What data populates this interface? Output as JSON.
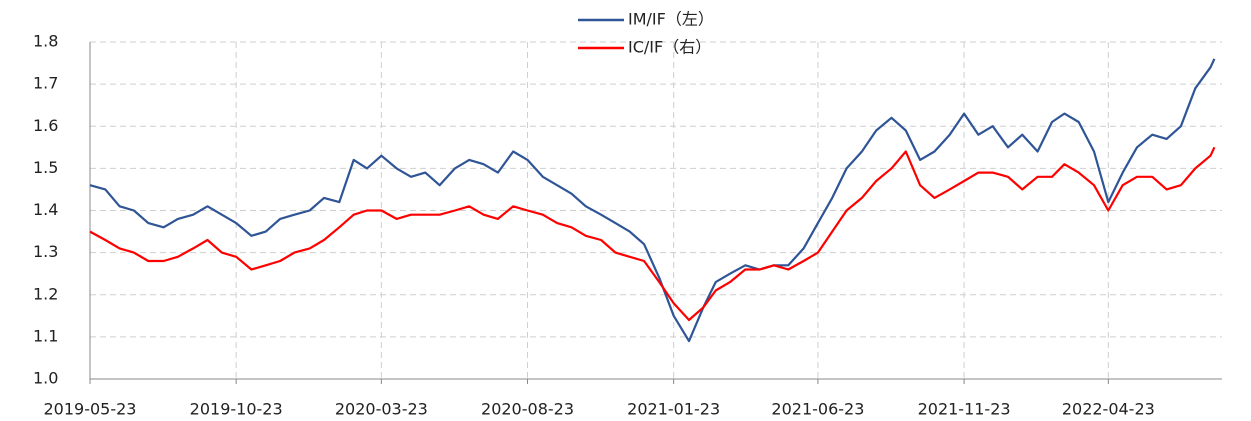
{
  "chart_data": {
    "type": "line",
    "x": [
      "2019-05-23",
      "2019-06-08",
      "2019-06-23",
      "2019-07-08",
      "2019-07-23",
      "2019-08-08",
      "2019-08-23",
      "2019-09-08",
      "2019-09-23",
      "2019-10-08",
      "2019-10-23",
      "2019-11-08",
      "2019-11-23",
      "2019-12-08",
      "2019-12-23",
      "2020-01-08",
      "2020-01-23",
      "2020-02-08",
      "2020-02-23",
      "2020-03-08",
      "2020-03-23",
      "2020-04-08",
      "2020-04-23",
      "2020-05-08",
      "2020-05-23",
      "2020-06-08",
      "2020-06-23",
      "2020-07-08",
      "2020-07-23",
      "2020-08-08",
      "2020-08-23",
      "2020-09-08",
      "2020-09-23",
      "2020-10-08",
      "2020-10-23",
      "2020-11-08",
      "2020-11-23",
      "2020-12-08",
      "2020-12-23",
      "2021-01-08",
      "2021-01-23",
      "2021-02-08",
      "2021-02-23",
      "2021-03-08",
      "2021-03-23",
      "2021-04-08",
      "2021-04-23",
      "2021-05-08",
      "2021-05-23",
      "2021-06-08",
      "2021-06-23",
      "2021-07-08",
      "2021-07-23",
      "2021-08-08",
      "2021-08-23",
      "2021-09-08",
      "2021-09-23",
      "2021-10-08",
      "2021-10-23",
      "2021-11-08",
      "2021-11-23",
      "2021-12-08",
      "2021-12-23",
      "2022-01-08",
      "2022-01-23",
      "2022-02-08",
      "2022-02-23",
      "2022-03-08",
      "2022-03-23",
      "2022-04-08",
      "2022-04-23",
      "2022-05-08",
      "2022-05-23",
      "2022-06-08",
      "2022-06-23",
      "2022-07-08",
      "2022-07-23",
      "2022-08-08",
      "2022-08-12"
    ],
    "series": [
      {
        "name": "IM/IF（左）",
        "color": "#2f5597",
        "values": [
          1.46,
          1.45,
          1.41,
          1.4,
          1.37,
          1.36,
          1.38,
          1.39,
          1.41,
          1.39,
          1.37,
          1.34,
          1.35,
          1.38,
          1.39,
          1.4,
          1.43,
          1.42,
          1.52,
          1.5,
          1.53,
          1.5,
          1.48,
          1.49,
          1.46,
          1.5,
          1.52,
          1.51,
          1.49,
          1.54,
          1.52,
          1.48,
          1.46,
          1.44,
          1.41,
          1.39,
          1.37,
          1.35,
          1.32,
          1.24,
          1.15,
          1.09,
          1.17,
          1.23,
          1.25,
          1.27,
          1.26,
          1.27,
          1.27,
          1.31,
          1.37,
          1.43,
          1.5,
          1.54,
          1.59,
          1.62,
          1.59,
          1.52,
          1.54,
          1.58,
          1.63,
          1.58,
          1.6,
          1.55,
          1.58,
          1.54,
          1.61,
          1.63,
          1.61,
          1.54,
          1.42,
          1.49,
          1.55,
          1.58,
          1.57,
          1.6,
          1.69,
          1.74,
          1.76
        ]
      },
      {
        "name": "IC/IF（右）",
        "color": "#ff0000",
        "values": [
          1.35,
          1.33,
          1.31,
          1.3,
          1.28,
          1.28,
          1.29,
          1.31,
          1.33,
          1.3,
          1.29,
          1.26,
          1.27,
          1.28,
          1.3,
          1.31,
          1.33,
          1.36,
          1.39,
          1.4,
          1.4,
          1.38,
          1.39,
          1.39,
          1.39,
          1.4,
          1.41,
          1.39,
          1.38,
          1.41,
          1.4,
          1.39,
          1.37,
          1.36,
          1.34,
          1.33,
          1.3,
          1.29,
          1.28,
          1.23,
          1.18,
          1.14,
          1.17,
          1.21,
          1.23,
          1.26,
          1.26,
          1.27,
          1.26,
          1.28,
          1.3,
          1.35,
          1.4,
          1.43,
          1.47,
          1.5,
          1.54,
          1.46,
          1.43,
          1.45,
          1.47,
          1.49,
          1.49,
          1.48,
          1.45,
          1.48,
          1.48,
          1.51,
          1.49,
          1.46,
          1.4,
          1.46,
          1.48,
          1.48,
          1.45,
          1.46,
          1.5,
          1.53,
          1.55
        ]
      }
    ],
    "xlim": [
      "2019-05-23",
      "2022-08-20"
    ],
    "xticks": [
      "2019-05-23",
      "2019-10-23",
      "2020-03-23",
      "2020-08-23",
      "2021-01-23",
      "2021-06-23",
      "2021-11-23",
      "2022-04-23"
    ],
    "ylim": [
      1.0,
      1.8
    ],
    "yticks": [
      {
        "value": 1,
        "label": "1.0"
      },
      1.1,
      1.2,
      1.3,
      1.4,
      1.5,
      1.6,
      1.7,
      1.8
    ],
    "grid": true,
    "legend": "top"
  }
}
